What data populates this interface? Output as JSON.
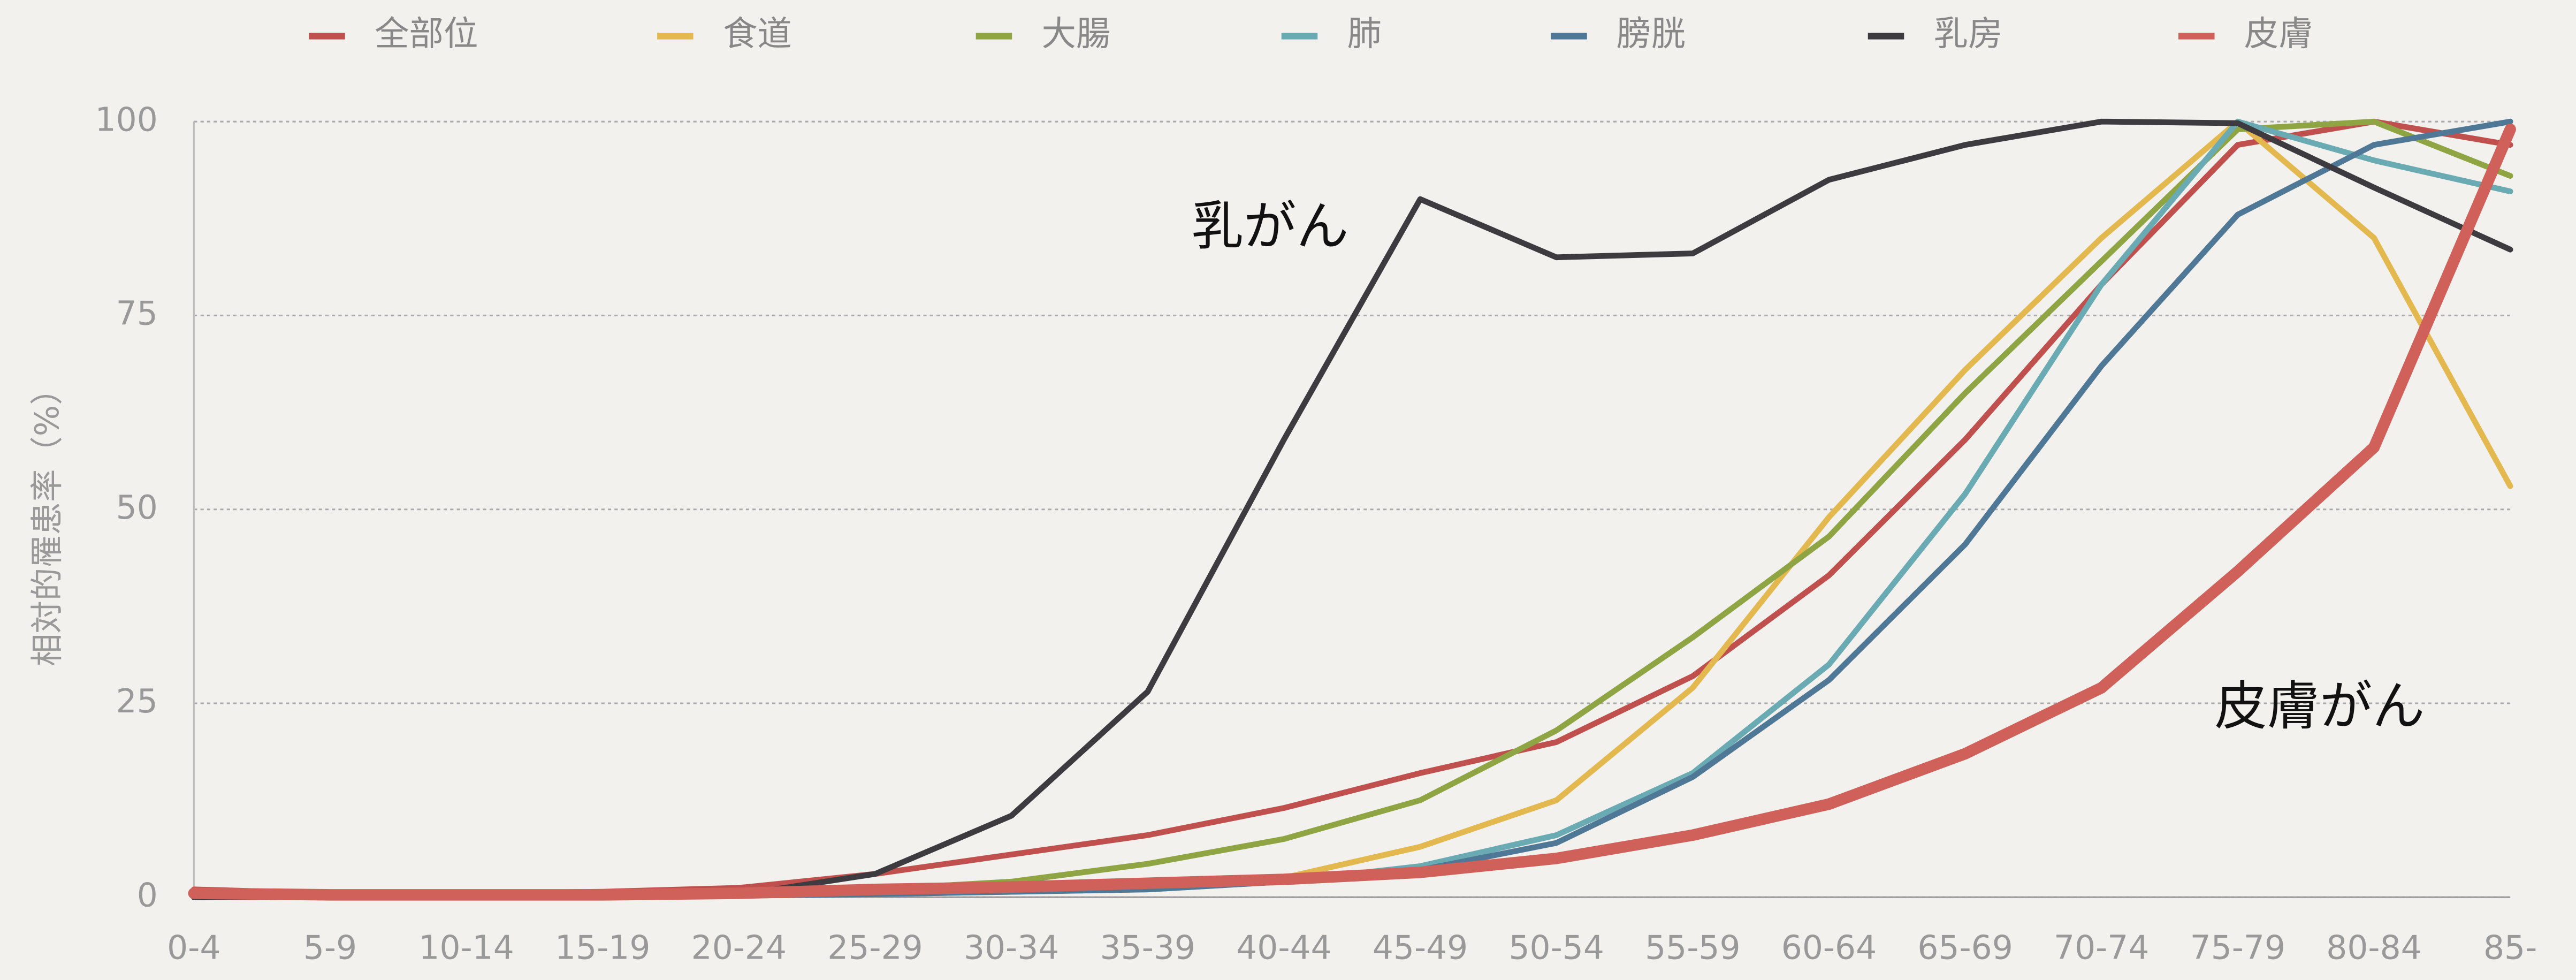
{
  "chart_data": {
    "type": "line",
    "y_label": "相対的罹患率（%）",
    "categories": [
      "0-4",
      "5-9",
      "10-14",
      "15-19",
      "20-24",
      "25-29",
      "30-34",
      "35-39",
      "40-44",
      "45-49",
      "50-54",
      "55-59",
      "60-64",
      "65-69",
      "70-74",
      "75-79",
      "80-84",
      "85-"
    ],
    "ylim": [
      0,
      100
    ],
    "yticks": [
      0,
      25,
      50,
      75,
      100
    ],
    "grid": true,
    "legend": "top",
    "series": [
      {
        "name": "全部位",
        "color": "#c0504d",
        "values": [
          1,
          0.5,
          0.5,
          0.7,
          1.2,
          3,
          5.5,
          8,
          11.5,
          16,
          20,
          28.5,
          41.5,
          59,
          79,
          97,
          100,
          97
        ]
      },
      {
        "name": "食道",
        "color": "#e3b94f",
        "values": [
          0,
          0,
          0,
          0,
          0.3,
          0.5,
          0.8,
          1.2,
          2.5,
          6.5,
          12.5,
          27,
          49,
          68,
          85,
          100,
          85,
          53
        ]
      },
      {
        "name": "大腸",
        "color": "#8fa443",
        "values": [
          0,
          0,
          0,
          0.2,
          0.5,
          1,
          2,
          4.3,
          7.5,
          12.5,
          21.5,
          33.5,
          46.5,
          65,
          82,
          99,
          100,
          93
        ]
      },
      {
        "name": "肺",
        "color": "#6aabb3",
        "values": [
          0,
          0,
          0,
          0,
          0.2,
          0.4,
          0.7,
          1,
          2,
          4,
          8,
          16,
          30,
          52,
          79,
          100,
          95,
          91
        ]
      },
      {
        "name": "膀胱",
        "color": "#4f7896",
        "values": [
          0,
          0,
          0,
          0,
          0.2,
          0.4,
          0.7,
          1,
          2,
          3.5,
          7,
          15.5,
          28,
          45.5,
          68.5,
          88,
          97,
          100
        ]
      },
      {
        "name": "乳房",
        "color": "#3d3b40",
        "values": [
          0,
          0,
          0,
          0,
          0.3,
          3,
          10.5,
          26.5,
          59,
          90,
          82.5,
          83,
          92.5,
          97,
          100,
          99.8,
          91.5,
          83.5
        ]
      },
      {
        "name": "皮膚",
        "color": "#d0605a",
        "values": [
          0.5,
          0.3,
          0.3,
          0.3,
          0.5,
          1,
          1.3,
          1.8,
          2.3,
          3.2,
          5,
          8,
          12,
          18.5,
          27,
          42,
          58,
          99
        ]
      }
    ],
    "annotations": [
      "乳がん",
      "皮膚がん"
    ]
  }
}
